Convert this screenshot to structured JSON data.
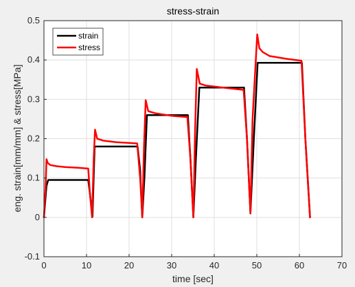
{
  "chart_data": {
    "type": "line",
    "title": "stress-strain",
    "xlabel": "time [sec]",
    "ylabel": "eng. strain[mm/mm] & stress[MPa]",
    "xlim": [
      0,
      70
    ],
    "ylim": [
      -0.1,
      0.5
    ],
    "xticks": [
      0,
      10,
      20,
      30,
      40,
      50,
      60,
      70
    ],
    "yticks": [
      -0.1,
      0,
      0.1,
      0.2,
      0.3,
      0.4,
      0.5
    ],
    "grid": true,
    "legend_position": "top-left",
    "series": [
      {
        "name": "strain",
        "color": "#000000",
        "x": [
          0,
          0.6,
          1.0,
          10.4,
          10.8,
          11.4,
          11.9,
          22.0,
          22.6,
          23.1,
          23.6,
          24.2,
          33.8,
          34.4,
          35.1,
          35.7,
          36.5,
          47.0,
          47.7,
          48.5,
          49.3,
          50.2,
          60.6,
          61.4,
          62.5
        ],
        "y": [
          0,
          0.08,
          0.095,
          0.095,
          0.06,
          0.002,
          0.18,
          0.18,
          0.12,
          0.0,
          0.1,
          0.26,
          0.26,
          0.15,
          0.0,
          0.15,
          0.33,
          0.33,
          0.2,
          0.01,
          0.2,
          0.393,
          0.393,
          0.2,
          0.0
        ]
      },
      {
        "name": "stress",
        "color": "#ff0000",
        "x": [
          0,
          0.4,
          0.6,
          0.9,
          1.5,
          3,
          5,
          8,
          10.4,
          10.8,
          11.3,
          11.7,
          12.0,
          12.5,
          14,
          17,
          21.9,
          22.6,
          23.1,
          23.5,
          23.9,
          24.5,
          26,
          30,
          33.7,
          34.4,
          35.1,
          35.5,
          35.9,
          36.6,
          38,
          42,
          46.9,
          47.7,
          48.5,
          49.0,
          50.1,
          50.6,
          51.4,
          53,
          57,
          60.5,
          61.4,
          62.5
        ],
        "y": [
          0,
          0.08,
          0.148,
          0.138,
          0.133,
          0.13,
          0.128,
          0.126,
          0.124,
          0.06,
          0.0,
          0.15,
          0.223,
          0.2,
          0.195,
          0.191,
          0.188,
          0.1,
          0.0,
          0.18,
          0.298,
          0.27,
          0.265,
          0.258,
          0.255,
          0.15,
          0.0,
          0.22,
          0.377,
          0.34,
          0.335,
          0.33,
          0.324,
          0.2,
          0.01,
          0.25,
          0.465,
          0.43,
          0.42,
          0.41,
          0.403,
          0.398,
          0.2,
          0.0
        ]
      }
    ]
  }
}
